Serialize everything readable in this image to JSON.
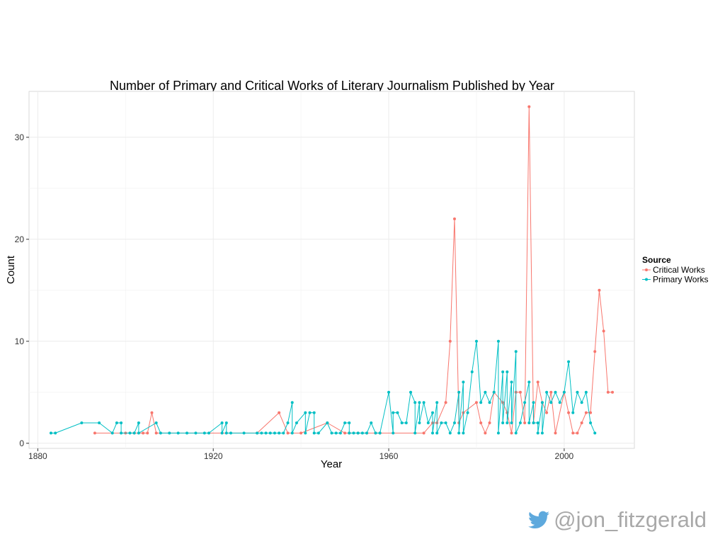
{
  "chart_data": {
    "type": "line",
    "title": "Number of Primary and Critical Works of Literary Journalism Published by Year",
    "xlabel": "Year",
    "ylabel": "Count",
    "xlim": [
      1878,
      2016
    ],
    "ylim": [
      -0.5,
      34.5
    ],
    "xticks": [
      1880,
      1920,
      1960,
      2000
    ],
    "yticks": [
      0,
      10,
      20,
      30
    ],
    "grid": true,
    "legend": {
      "title": "Source",
      "position": "right"
    },
    "series": [
      {
        "name": "Critical Works",
        "color": "#F8766D",
        "points": [
          [
            1893,
            1
          ],
          [
            1900,
            1
          ],
          [
            1902,
            1
          ],
          [
            1904,
            1
          ],
          [
            1905,
            1
          ],
          [
            1906,
            3
          ],
          [
            1907,
            1
          ],
          [
            1930,
            1
          ],
          [
            1935,
            3
          ],
          [
            1937,
            1
          ],
          [
            1940,
            1
          ],
          [
            1946,
            2
          ],
          [
            1950,
            1
          ],
          [
            1951,
            1
          ],
          [
            1953,
            1
          ],
          [
            1955,
            1
          ],
          [
            1957,
            1
          ],
          [
            1958,
            1
          ],
          [
            1968,
            1
          ],
          [
            1970,
            2
          ],
          [
            1971,
            2
          ],
          [
            1973,
            4
          ],
          [
            1974,
            10
          ],
          [
            1975,
            22
          ],
          [
            1976,
            2
          ],
          [
            1977,
            3
          ],
          [
            1980,
            4
          ],
          [
            1981,
            2
          ],
          [
            1982,
            1
          ],
          [
            1983,
            2
          ],
          [
            1984,
            5
          ],
          [
            1986,
            4
          ],
          [
            1987,
            3
          ],
          [
            1988,
            1
          ],
          [
            1989,
            5
          ],
          [
            1990,
            5
          ],
          [
            1991,
            2
          ],
          [
            1992,
            33
          ],
          [
            1993,
            2
          ],
          [
            1994,
            6
          ],
          [
            1995,
            4
          ],
          [
            1996,
            3
          ],
          [
            1997,
            5
          ],
          [
            1998,
            1
          ],
          [
            2000,
            5
          ],
          [
            2001,
            3
          ],
          [
            2002,
            1
          ],
          [
            2003,
            1
          ],
          [
            2004,
            2
          ],
          [
            2005,
            3
          ],
          [
            2006,
            3
          ],
          [
            2007,
            9
          ],
          [
            2008,
            15
          ],
          [
            2009,
            11
          ],
          [
            2010,
            5
          ],
          [
            2011,
            5
          ]
        ]
      },
      {
        "name": "Primary Works",
        "color": "#00BFC4",
        "points": [
          [
            1883,
            1
          ],
          [
            1884,
            1
          ],
          [
            1890,
            2
          ],
          [
            1894,
            2
          ],
          [
            1897,
            1
          ],
          [
            1898,
            2
          ],
          [
            1899,
            2
          ],
          [
            1899,
            1
          ],
          [
            1901,
            1
          ],
          [
            1902,
            1
          ],
          [
            1903,
            2
          ],
          [
            1903,
            1
          ],
          [
            1907,
            2
          ],
          [
            1908,
            1
          ],
          [
            1910,
            1
          ],
          [
            1912,
            1
          ],
          [
            1914,
            1
          ],
          [
            1916,
            1
          ],
          [
            1918,
            1
          ],
          [
            1919,
            1
          ],
          [
            1922,
            2
          ],
          [
            1922,
            1
          ],
          [
            1923,
            2
          ],
          [
            1923,
            1
          ],
          [
            1924,
            1
          ],
          [
            1927,
            1
          ],
          [
            1930,
            1
          ],
          [
            1931,
            1
          ],
          [
            1932,
            1
          ],
          [
            1933,
            1
          ],
          [
            1934,
            1
          ],
          [
            1935,
            1
          ],
          [
            1936,
            1
          ],
          [
            1937,
            2
          ],
          [
            1938,
            4
          ],
          [
            1938,
            1
          ],
          [
            1939,
            2
          ],
          [
            1941,
            3
          ],
          [
            1941,
            1
          ],
          [
            1942,
            3
          ],
          [
            1943,
            3
          ],
          [
            1943,
            1
          ],
          [
            1944,
            1
          ],
          [
            1946,
            2
          ],
          [
            1947,
            1
          ],
          [
            1948,
            1
          ],
          [
            1949,
            1
          ],
          [
            1950,
            2
          ],
          [
            1951,
            2
          ],
          [
            1951,
            1
          ],
          [
            1952,
            1
          ],
          [
            1953,
            1
          ],
          [
            1954,
            1
          ],
          [
            1955,
            1
          ],
          [
            1956,
            2
          ],
          [
            1957,
            1
          ],
          [
            1958,
            1
          ],
          [
            1960,
            5
          ],
          [
            1961,
            1
          ],
          [
            1961,
            3
          ],
          [
            1962,
            3
          ],
          [
            1963,
            2
          ],
          [
            1964,
            2
          ],
          [
            1965,
            5
          ],
          [
            1966,
            4
          ],
          [
            1966,
            1
          ],
          [
            1967,
            4
          ],
          [
            1967,
            2
          ],
          [
            1968,
            4
          ],
          [
            1969,
            2
          ],
          [
            1970,
            3
          ],
          [
            1970,
            1
          ],
          [
            1971,
            4
          ],
          [
            1971,
            1
          ],
          [
            1972,
            2
          ],
          [
            1973,
            2
          ],
          [
            1974,
            1
          ],
          [
            1975,
            2
          ],
          [
            1976,
            5
          ],
          [
            1976,
            1
          ],
          [
            1977,
            6
          ],
          [
            1977,
            1
          ],
          [
            1978,
            3
          ],
          [
            1979,
            7
          ],
          [
            1980,
            10
          ],
          [
            1981,
            4
          ],
          [
            1982,
            5
          ],
          [
            1983,
            4
          ],
          [
            1984,
            5
          ],
          [
            1985,
            10
          ],
          [
            1985,
            1
          ],
          [
            1986,
            7
          ],
          [
            1986,
            2
          ],
          [
            1987,
            7
          ],
          [
            1987,
            2
          ],
          [
            1988,
            6
          ],
          [
            1988,
            2
          ],
          [
            1989,
            9
          ],
          [
            1989,
            1
          ],
          [
            1990,
            2
          ],
          [
            1991,
            4
          ],
          [
            1992,
            6
          ],
          [
            1992,
            2
          ],
          [
            1993,
            4
          ],
          [
            1993,
            2
          ],
          [
            1994,
            2
          ],
          [
            1994,
            1
          ],
          [
            1995,
            4
          ],
          [
            1995,
            1
          ],
          [
            1996,
            5
          ],
          [
            1997,
            4
          ],
          [
            1998,
            5
          ],
          [
            1999,
            4
          ],
          [
            2000,
            5
          ],
          [
            2001,
            8
          ],
          [
            2002,
            3
          ],
          [
            2003,
            5
          ],
          [
            2004,
            4
          ],
          [
            2005,
            5
          ],
          [
            2006,
            2
          ],
          [
            2007,
            1
          ]
        ]
      }
    ]
  },
  "watermark": {
    "icon": "twitter-bird-icon",
    "text": "@jon_fitzgerald",
    "color": "#a9a9a9",
    "icon_color": "#5ea9dd"
  }
}
